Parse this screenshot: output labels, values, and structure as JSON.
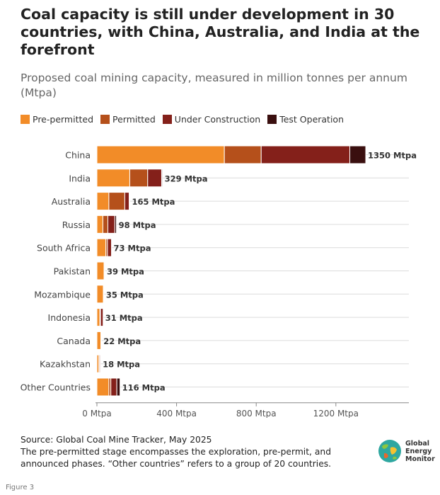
{
  "title": "Coal capacity is still under development in 30 countries, with China, Australia, and India at the forefront",
  "subtitle": "Proposed coal mining capacity, measured in million tonnes per annum (Mtpa)",
  "legend": [
    {
      "label": "Pre-permitted",
      "color": "#F28C28"
    },
    {
      "label": "Permitted",
      "color": "#B5501B"
    },
    {
      "label": "Under Construction",
      "color": "#84201A"
    },
    {
      "label": "Test Operation",
      "color": "#3A0F0F"
    }
  ],
  "chart_data": {
    "type": "bar",
    "orientation": "horizontal",
    "stacked": true,
    "categories": [
      "China",
      "India",
      "Australia",
      "Russia",
      "South Africa",
      "Pakistan",
      "Mozambique",
      "Indonesia",
      "Canada",
      "Kazakhstan",
      "Other Countries"
    ],
    "series": [
      {
        "name": "Pre-permitted",
        "color": "#F28C28",
        "values": [
          640,
          165,
          60,
          30,
          45,
          36,
          32,
          15,
          20,
          10,
          60
        ]
      },
      {
        "name": "Permitted",
        "color": "#B5501B",
        "values": [
          185,
          90,
          80,
          25,
          8,
          3,
          3,
          3,
          2,
          4,
          10
        ]
      },
      {
        "name": "Under Construction",
        "color": "#84201A",
        "values": [
          445,
          70,
          22,
          35,
          20,
          0,
          0,
          13,
          0,
          4,
          30
        ]
      },
      {
        "name": "Test Operation",
        "color": "#3A0F0F",
        "values": [
          80,
          4,
          3,
          8,
          0,
          0,
          0,
          0,
          0,
          0,
          16
        ]
      }
    ],
    "totals": [
      1350,
      329,
      165,
      98,
      73,
      39,
      35,
      31,
      22,
      18,
      116
    ],
    "total_labels": [
      "1350 Mtpa",
      "329 Mtpa",
      "165 Mtpa",
      "98 Mtpa",
      "73 Mtpa",
      "39 Mtpa",
      "35 Mtpa",
      "31 Mtpa",
      "22 Mtpa",
      "18 Mtpa",
      "116 Mtpa"
    ],
    "x_ticks": [
      0,
      400,
      800,
      1200
    ],
    "x_tick_labels": [
      "0 Mtpa",
      "400 Mtpa",
      "800 Mtpa",
      "1200 Mtpa"
    ],
    "xlim": [
      0,
      1350
    ],
    "grid": "horizontal",
    "legend_position": "top-left"
  },
  "source": {
    "line1": "Source: Global Coal Mine Tracker, May 2025",
    "line2": "The pre-permitted stage encompasses the exploration, pre-permit, and announced phases. “Other countries” refers to a group of 20 countries."
  },
  "logo": {
    "line1": "Global",
    "line2": "Energy",
    "line3": "Monitor",
    "icon": "globe-icon"
  },
  "figure_label": "Figure 3"
}
